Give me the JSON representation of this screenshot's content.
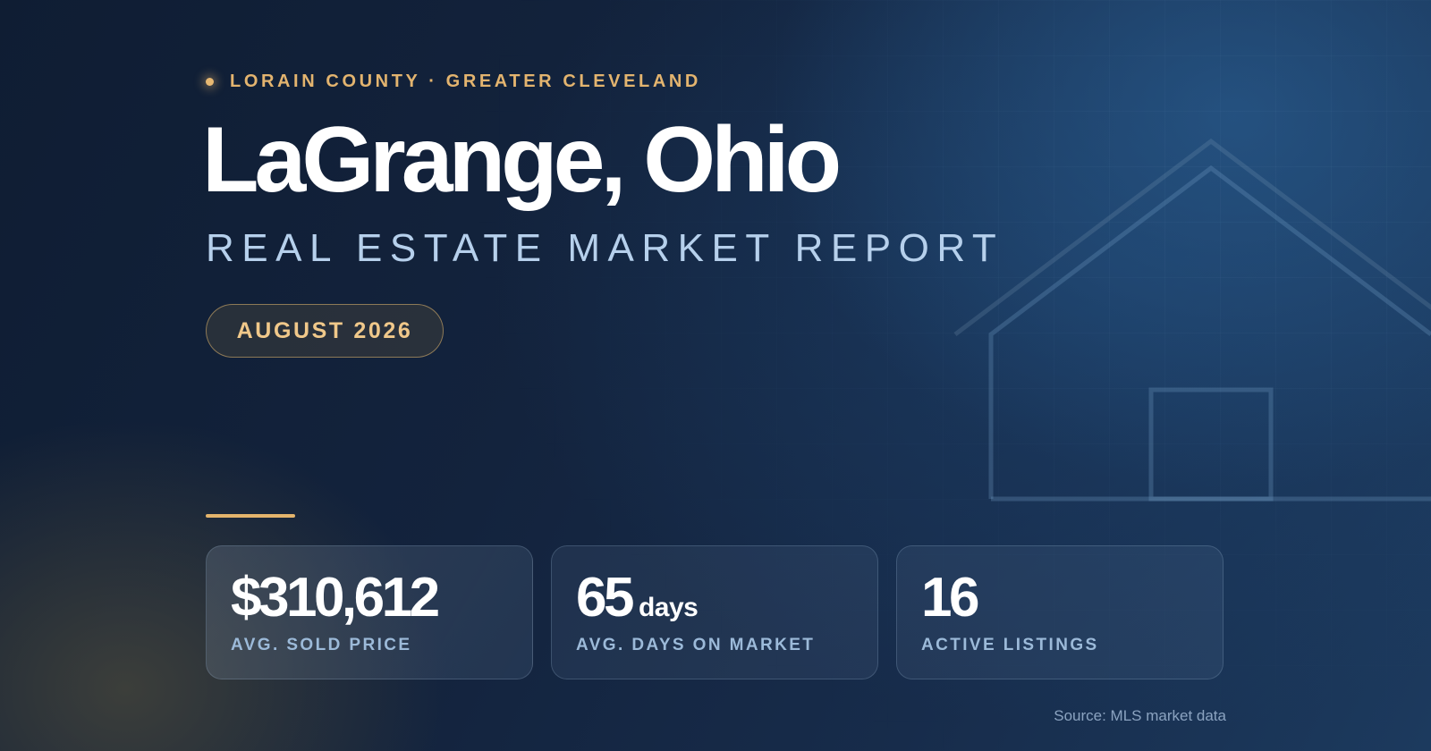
{
  "header": {
    "kicker": "LORAIN COUNTY · GREATER CLEVELAND",
    "title": "LaGrange, Ohio",
    "subtitle": "REAL ESTATE MARKET REPORT",
    "date_badge": "AUGUST 2026"
  },
  "stats": [
    {
      "value": "$310,612",
      "unit": "",
      "label": "AVG. SOLD PRICE"
    },
    {
      "value": "65",
      "unit": "days",
      "label": "AVG. DAYS ON MARKET"
    },
    {
      "value": "16",
      "unit": "",
      "label": "ACTIVE LISTINGS"
    }
  ],
  "footer": {
    "source": "Source: MLS market data"
  },
  "colors": {
    "accent": "#e4b46c",
    "background": "#13233d",
    "subtitle": "#b6d0ec"
  },
  "icons": {
    "house_outline": "house-outline-icon"
  }
}
